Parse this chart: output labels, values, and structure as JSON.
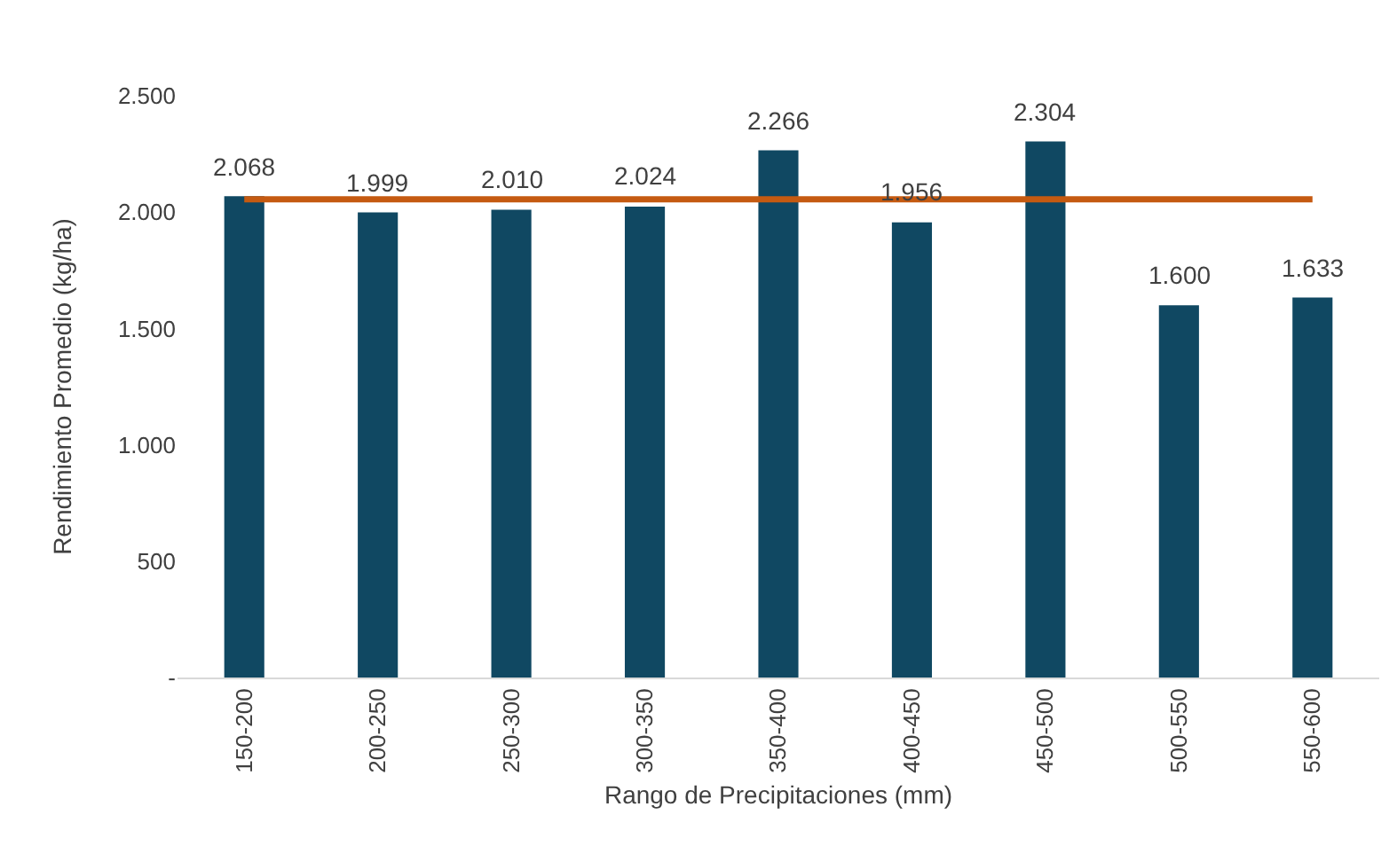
{
  "chart_data": {
    "type": "bar",
    "xlabel": "Rango de Precipitaciones (mm)",
    "ylabel": "Rendimiento Promedio (kg/ha)",
    "categories": [
      "150-200",
      "200-250",
      "250-300",
      "300-350",
      "350-400",
      "400-450",
      "450-500",
      "500-550",
      "550-600"
    ],
    "series": [
      {
        "color": "#104862",
        "values": [
          2068,
          1999,
          2010,
          2024,
          2266,
          1956,
          2304,
          1600,
          1633
        ],
        "value_labels": [
          "2.068",
          "1.999",
          "2.010",
          "2.024",
          "2.266",
          "1.956",
          "2.304",
          "1.600",
          "1.633"
        ]
      },
      {
        "type": "line",
        "color": "#c55a11",
        "values": [
          2055,
          2055,
          2055,
          2055,
          2055,
          2055,
          2055,
          2055,
          2055
        ]
      }
    ],
    "ylim": [
      0,
      2500
    ],
    "yticks": [
      {
        "value": 0,
        "label": "-"
      },
      500,
      {
        "value": 1000,
        "label": "1.000"
      },
      {
        "value": 1500,
        "label": "1.500"
      },
      {
        "value": 2000,
        "label": "2.000"
      },
      {
        "value": 2500,
        "label": "2.500"
      }
    ],
    "grid": false
  }
}
